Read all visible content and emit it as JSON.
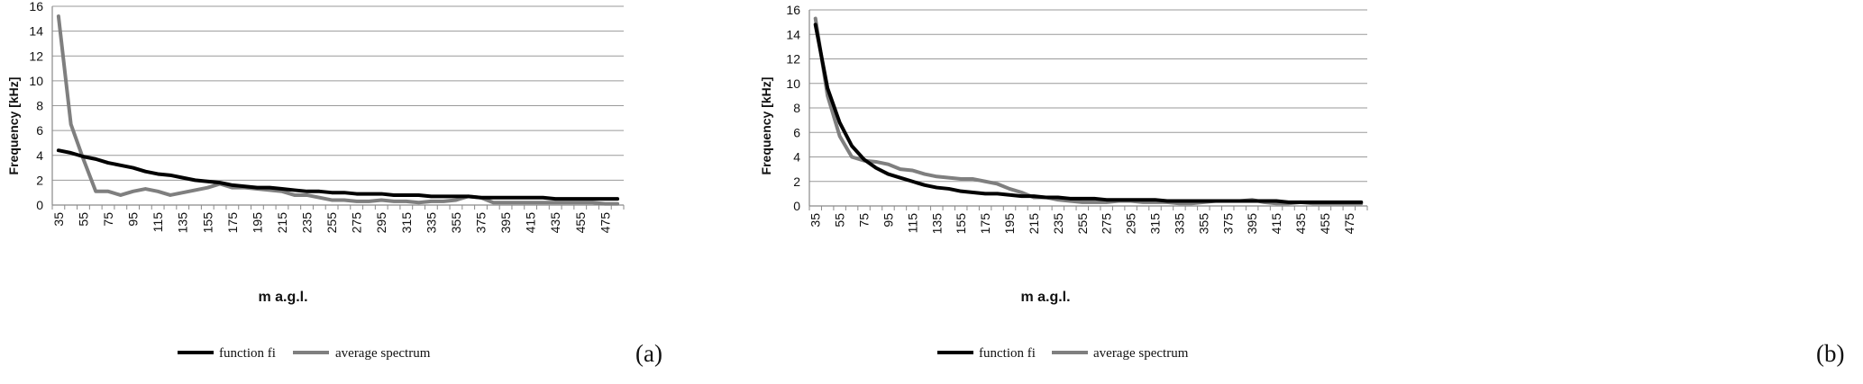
{
  "chart_data": [
    {
      "type": "line",
      "panel_label": "(a)",
      "xlabel": "m  a.g.l.",
      "ylabel": "Frequency [kHz]",
      "ylim": [
        0,
        16
      ],
      "yticks": [
        "0",
        "2",
        "4",
        "6",
        "8",
        "10",
        "12",
        "14",
        "16"
      ],
      "x": [
        35,
        45,
        55,
        65,
        75,
        85,
        95,
        105,
        115,
        125,
        135,
        145,
        155,
        165,
        175,
        185,
        195,
        205,
        215,
        225,
        235,
        245,
        255,
        265,
        275,
        285,
        295,
        305,
        315,
        325,
        335,
        345,
        355,
        365,
        375,
        385,
        395,
        405,
        415,
        425,
        435,
        445,
        455,
        465,
        475,
        485
      ],
      "xticks": [
        "35",
        "55",
        "75",
        "95",
        "115",
        "135",
        "155",
        "175",
        "195",
        "215",
        "235",
        "255",
        "275",
        "295",
        "315",
        "335",
        "355",
        "375",
        "395",
        "415",
        "435",
        "455",
        "475"
      ],
      "grid": true,
      "legend_position": "bottom",
      "series": [
        {
          "name": "function fi",
          "color": "#000000",
          "values": [
            4.4,
            4.2,
            3.9,
            3.7,
            3.4,
            3.2,
            3.0,
            2.7,
            2.5,
            2.4,
            2.2,
            2.0,
            1.9,
            1.8,
            1.6,
            1.5,
            1.4,
            1.4,
            1.3,
            1.2,
            1.1,
            1.1,
            1.0,
            1.0,
            0.9,
            0.9,
            0.9,
            0.8,
            0.8,
            0.8,
            0.7,
            0.7,
            0.7,
            0.7,
            0.6,
            0.6,
            0.6,
            0.6,
            0.6,
            0.6,
            0.5,
            0.5,
            0.5,
            0.5,
            0.5,
            0.5
          ]
        },
        {
          "name": "average spectrum",
          "color": "#7f7f7f",
          "values": [
            15.2,
            6.5,
            3.7,
            1.1,
            1.1,
            0.8,
            1.1,
            1.3,
            1.1,
            0.8,
            1.0,
            1.2,
            1.4,
            1.7,
            1.4,
            1.4,
            1.3,
            1.2,
            1.1,
            0.8,
            0.8,
            0.6,
            0.4,
            0.4,
            0.3,
            0.3,
            0.4,
            0.3,
            0.3,
            0.2,
            0.3,
            0.3,
            0.4,
            0.7,
            0.6,
            0.2,
            0.2,
            0.2,
            0.2,
            0.2,
            0.2,
            0.2,
            0.2,
            0.2,
            0.1,
            0.1
          ]
        }
      ]
    },
    {
      "type": "line",
      "panel_label": "(b)",
      "xlabel": "m  a.g.l.",
      "ylabel": "Frequency [kHz]",
      "ylim": [
        0,
        16
      ],
      "yticks": [
        "0",
        "2",
        "4",
        "6",
        "8",
        "10",
        "12",
        "14",
        "16"
      ],
      "x": [
        35,
        45,
        55,
        65,
        75,
        85,
        95,
        105,
        115,
        125,
        135,
        145,
        155,
        165,
        175,
        185,
        195,
        205,
        215,
        225,
        235,
        245,
        255,
        265,
        275,
        285,
        295,
        305,
        315,
        325,
        335,
        345,
        355,
        365,
        375,
        385,
        395,
        405,
        415,
        425,
        435,
        445,
        455,
        465,
        475,
        485
      ],
      "xticks": [
        "35",
        "55",
        "75",
        "95",
        "115",
        "135",
        "155",
        "175",
        "195",
        "215",
        "235",
        "255",
        "275",
        "295",
        "315",
        "335",
        "355",
        "375",
        "395",
        "415",
        "435",
        "455",
        "475"
      ],
      "grid": true,
      "legend_position": "bottom",
      "series": [
        {
          "name": "function fi",
          "color": "#000000",
          "values": [
            14.8,
            9.6,
            6.8,
            4.9,
            3.8,
            3.1,
            2.6,
            2.3,
            2.0,
            1.7,
            1.5,
            1.4,
            1.2,
            1.1,
            1.0,
            1.0,
            0.9,
            0.8,
            0.8,
            0.7,
            0.7,
            0.6,
            0.6,
            0.6,
            0.5,
            0.5,
            0.5,
            0.5,
            0.5,
            0.4,
            0.4,
            0.4,
            0.4,
            0.4,
            0.4,
            0.4,
            0.4,
            0.4,
            0.4,
            0.3,
            0.3,
            0.3,
            0.3,
            0.3,
            0.3,
            0.3
          ]
        },
        {
          "name": "average spectrum",
          "color": "#7f7f7f",
          "values": [
            15.3,
            9.0,
            5.7,
            4.0,
            3.7,
            3.6,
            3.4,
            3.0,
            2.9,
            2.6,
            2.4,
            2.3,
            2.2,
            2.2,
            2.0,
            1.8,
            1.4,
            1.1,
            0.7,
            0.7,
            0.5,
            0.4,
            0.3,
            0.3,
            0.3,
            0.4,
            0.4,
            0.3,
            0.3,
            0.3,
            0.2,
            0.2,
            0.3,
            0.4,
            0.4,
            0.4,
            0.5,
            0.3,
            0.2,
            0.2,
            0.3,
            0.2,
            0.2,
            0.2,
            0.2,
            0.2
          ]
        }
      ]
    }
  ]
}
